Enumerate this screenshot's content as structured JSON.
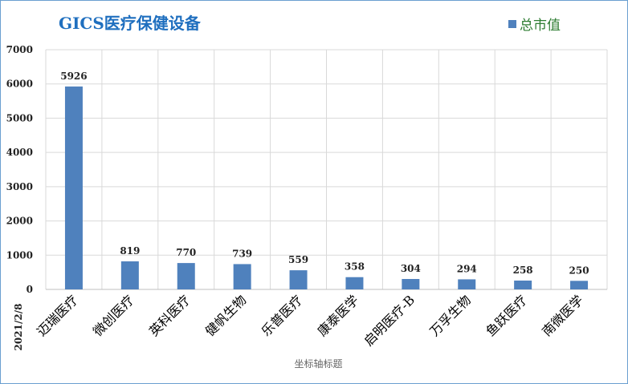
{
  "chart_data": {
    "type": "bar",
    "title": "GICS医疗保健设备",
    "categories": [
      "迈瑞医疗",
      "微创医疗",
      "英科医疗",
      "健帆生物",
      "乐普医疗",
      "康泰医学",
      "启明医疗-B",
      "万孚生物",
      "鱼跃医疗",
      "南微医学"
    ],
    "series": [
      {
        "name": "总市值",
        "values": [
          5926,
          819,
          770,
          739,
          559,
          358,
          304,
          294,
          258,
          250
        ]
      }
    ],
    "xlabel": "坐标轴标题",
    "date_label": "2021/2/8",
    "ylim": [
      0,
      7000
    ],
    "yticks": [
      0,
      1000,
      2000,
      3000,
      4000,
      5000,
      6000,
      7000
    ],
    "grid": true,
    "legend_position": "top-right",
    "bar_color": "#4f81bd"
  }
}
